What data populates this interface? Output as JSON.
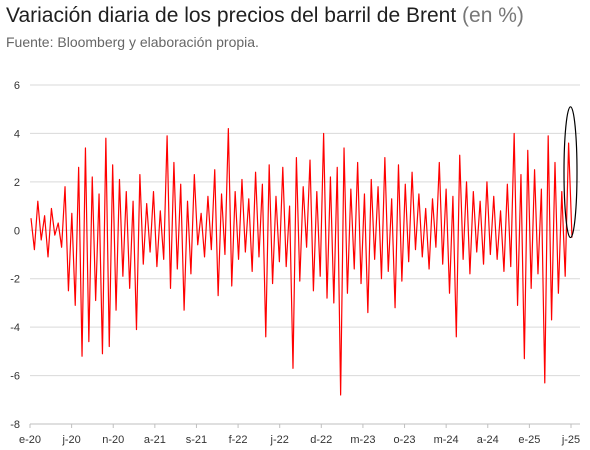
{
  "header": {
    "title": "Variación diaria de los precios del barril de Brent",
    "title_unit": "(en %)",
    "source": "Fuente: Bloomberg y elaboración propia."
  },
  "chart_data": {
    "type": "line",
    "title": "Variación diaria de los precios del barril de Brent (en %)",
    "xlabel": "",
    "ylabel": "",
    "ylim": [
      -8,
      6
    ],
    "yticks": [
      -8,
      -6,
      -4,
      -2,
      0,
      2,
      4,
      6
    ],
    "ytick_labels": [
      "-8",
      "-6",
      "-4",
      "-2",
      "0",
      "2",
      "4",
      "6"
    ],
    "xticks": [
      "e-20",
      "j-20",
      "n-20",
      "a-21",
      "s-21",
      "f-22",
      "j-22",
      "d-22",
      "m-23",
      "o-23",
      "m-24",
      "a-24",
      "e-25",
      "j-25"
    ],
    "x_range": [
      "2020-01",
      "2025-06"
    ],
    "grid": true,
    "legend": "none",
    "line_color": "#ff0000",
    "highlight": {
      "shape": "ellipse",
      "x": "2025-06",
      "y_range": [
        -0.3,
        5.1
      ],
      "color": "#000000"
    },
    "series": [
      {
        "values": [
          0.5,
          -0.8,
          1.2,
          -0.4,
          0.6,
          -1.1,
          0.9,
          -0.2,
          0.3,
          -0.7,
          1.8,
          -2.5,
          0.7,
          -3.1,
          2.6,
          -5.2,
          3.4,
          -4.6,
          2.2,
          -2.9,
          1.5,
          -5.1,
          3.8,
          -4.8,
          2.7,
          -3.3,
          2.1,
          -1.9,
          1.6,
          -2.4,
          1.2,
          -4.1,
          2.3,
          -1.4,
          1.1,
          -0.9,
          1.6,
          -1.5,
          0.8,
          -1.2,
          3.9,
          -2.4,
          2.8,
          -1.6,
          1.9,
          -3.3,
          1.2,
          -1.8,
          2.3,
          -0.6,
          0.7,
          -1.1,
          1.4,
          -0.8,
          2.5,
          -2.7,
          1.5,
          -1.0,
          4.2,
          -2.3,
          1.6,
          -1.2,
          2.1,
          -0.9,
          1.3,
          -1.7,
          2.4,
          -1.1,
          1.9,
          -4.4,
          2.7,
          -2.2,
          1.4,
          -1.3,
          2.6,
          -1.5,
          1.0,
          -5.7,
          3.0,
          -2.1,
          1.8,
          -0.7,
          2.9,
          -2.5,
          1.6,
          -1.9,
          4.0,
          -2.8,
          2.2,
          -3.0,
          2.6,
          -6.8,
          3.4,
          -2.6,
          1.7,
          -1.6,
          2.8,
          -2.2,
          1.5,
          -3.4,
          2.1,
          -1.2,
          1.8,
          -2.0,
          3.0,
          -1.7,
          1.3,
          -3.2,
          2.7,
          -2.1,
          1.9,
          -1.3,
          2.4,
          -0.8,
          1.5,
          -1.1,
          0.9,
          -1.6,
          1.3,
          -0.7,
          2.8,
          -1.4,
          1.7,
          -2.6,
          1.4,
          -4.4,
          3.1,
          -1.2,
          2.0,
          -1.8,
          1.6,
          -0.9,
          1.2,
          -1.4,
          2.0,
          -1.0,
          1.4,
          -1.2,
          0.8,
          -1.7,
          1.9,
          -1.5,
          4.0,
          -3.1,
          2.3,
          -5.3,
          3.3,
          -2.4,
          2.5,
          -1.8,
          1.7,
          -6.3,
          3.9,
          -3.7,
          2.8,
          -2.6,
          1.6,
          -1.9,
          3.6,
          -0.3
        ]
      }
    ]
  }
}
